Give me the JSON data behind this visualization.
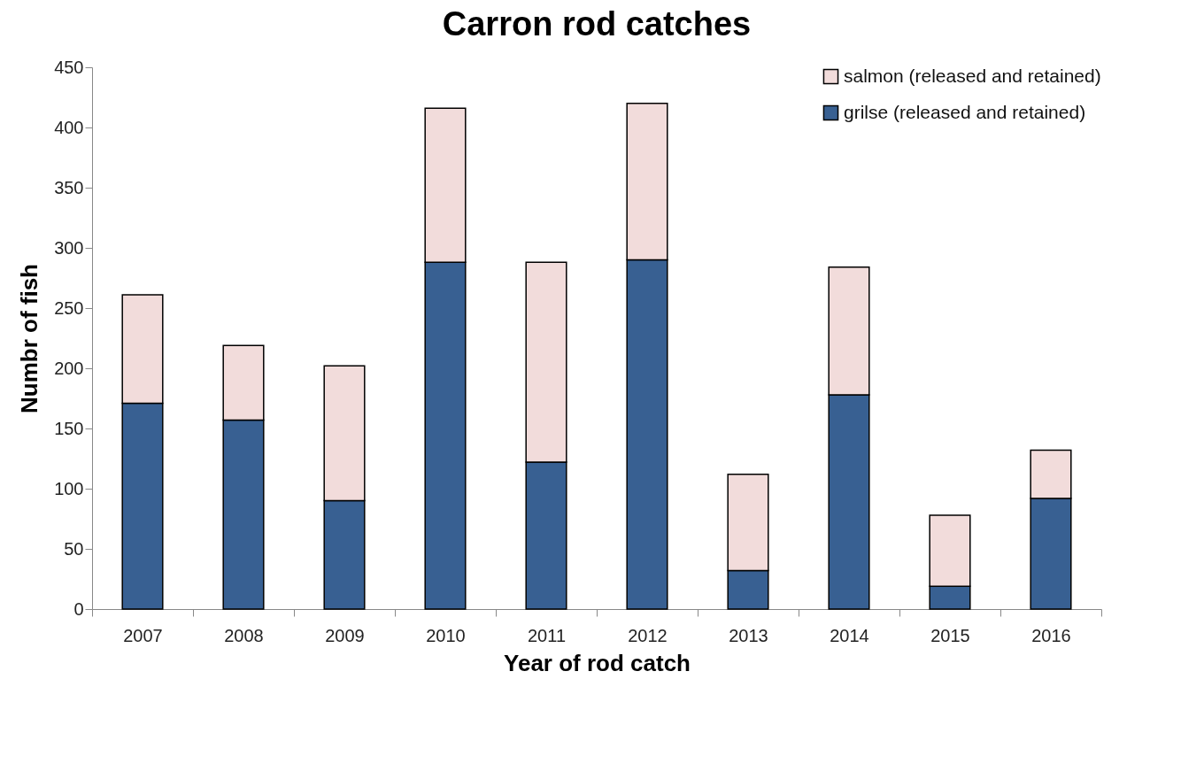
{
  "chart_data": {
    "type": "bar",
    "title": "Carron rod catches",
    "xlabel": "Year of rod catch",
    "ylabel": "Numbr of fish",
    "stacked": true,
    "legend": "top right",
    "grid": false,
    "categories": [
      "2007",
      "2008",
      "2009",
      "2010",
      "2011",
      "2012",
      "2013",
      "2014",
      "2015",
      "2016"
    ],
    "ylim": [
      0,
      450
    ],
    "yticks": [
      0,
      50,
      100,
      150,
      200,
      250,
      300,
      350,
      400,
      450
    ],
    "series": [
      {
        "name": "grilse (released and retained)",
        "color": "#386092",
        "values": [
          171,
          157,
          90,
          288,
          122,
          290,
          32,
          178,
          19,
          92
        ]
      },
      {
        "name": "salmon (released and retained)",
        "color": "#f2dcdb",
        "values": [
          90,
          62,
          112,
          128,
          166,
          130,
          80,
          106,
          59,
          40
        ]
      }
    ]
  }
}
